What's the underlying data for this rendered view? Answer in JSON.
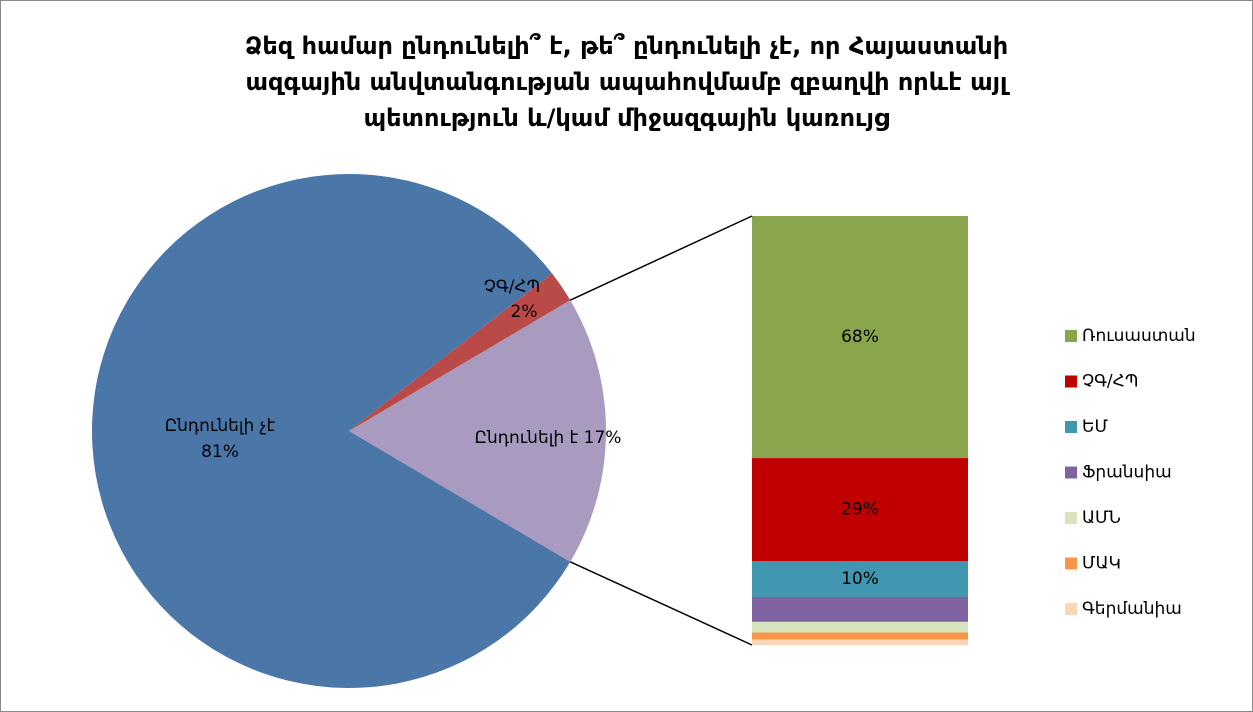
{
  "chart_data": {
    "type": "pie-of-bar",
    "title": "Ձեզ համար ընդունելի՞ է, թե՞ ընդունելի չէ, որ Հայաստանի\nազգային անվտանգության ապահովմամբ զբաղվի որևէ այլ\nպետություն և/կամ միջազգային կառույց",
    "pie": {
      "categories": [
        "Ընդունելի չէ",
        "ՉԳ/ՀՊ",
        "Ընդունելի է"
      ],
      "values": [
        81,
        2,
        17
      ],
      "value_labels": [
        "81%",
        "2%",
        "17%"
      ],
      "colors": [
        "#4a76a8",
        "#b94a48",
        "#a99bbf"
      ]
    },
    "bar": {
      "categories": [
        "Ռուսաստան",
        "ՉԳ/ՀՊ",
        "ԵՄ",
        "Ֆրանսիա",
        "ԱՄՆ",
        "ՄԱԿ",
        "Գերմանիա"
      ],
      "values": [
        68,
        29,
        10,
        7,
        3,
        2,
        1.5
      ],
      "value_labels": [
        "68%",
        "29%",
        "10%",
        null,
        null,
        null,
        null
      ],
      "colors": [
        "#8aa64c",
        "#c00000",
        "#4197b0",
        "#7f63a1",
        "#d7e4bd",
        "#f79646",
        "#fbd5b5"
      ]
    }
  }
}
